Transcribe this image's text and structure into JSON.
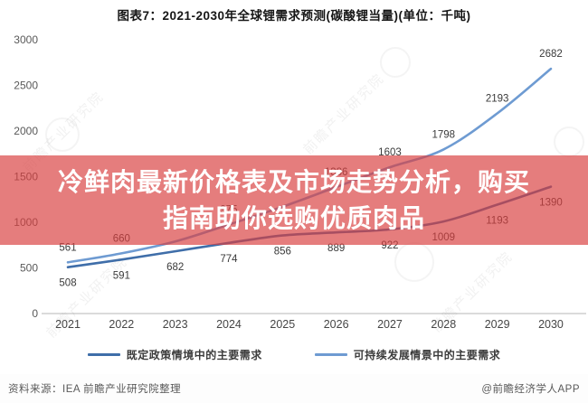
{
  "title": "图表7：2021-2030年全球锂需求预测(碳酸锂当量)(单位：千吨)",
  "overlay": {
    "line1": "冷鲜肉最新价格表及市场走势分析，购买",
    "line2": "指南助你选购优质肉品",
    "bg_color": "rgba(217,64,64,0.68)"
  },
  "chart_data": {
    "type": "line",
    "x": [
      "2021",
      "2022",
      "2023",
      "2024",
      "2025",
      "2026",
      "2027",
      "2028",
      "2029",
      "2030"
    ],
    "series": [
      {
        "name": "既定政策情境中的主要需求",
        "color": "#3f6ea9",
        "values": [
          508,
          591,
          682,
          774,
          856,
          889,
          922,
          1009,
          1193,
          1390
        ],
        "labels": [
          "508",
          "591",
          "682",
          "774",
          "856",
          "889",
          "922",
          "1009",
          "1193",
          "1390"
        ],
        "label_position": "below"
      },
      {
        "name": "可持续发展情景中的主要需求",
        "color": "#6e9bd2",
        "values": [
          561,
          660,
          790,
          975,
          1170,
          1386,
          1603,
          1798,
          2193,
          2682
        ],
        "labels": [
          "561",
          "660",
          "",
          "975",
          "",
          "1386",
          "1603",
          "1798",
          "2193",
          "2682"
        ],
        "label_position": "above"
      }
    ],
    "ylim": [
      0,
      3000
    ],
    "yticks": [
      0,
      500,
      1000,
      1500,
      2000,
      2500,
      3000
    ],
    "grid": false,
    "legend_position": "bottom",
    "axis_color": "#cfcfcf",
    "tick_label_color": "#595959",
    "x_label_color": "#454545",
    "data_label_color": "#3a3a3a"
  },
  "footer": {
    "source": "资料来源：IEA 前瞻产业研究院整理",
    "credit": "@前瞻经济学人APP"
  },
  "watermark": {
    "text": "前瞻产业研究院"
  }
}
